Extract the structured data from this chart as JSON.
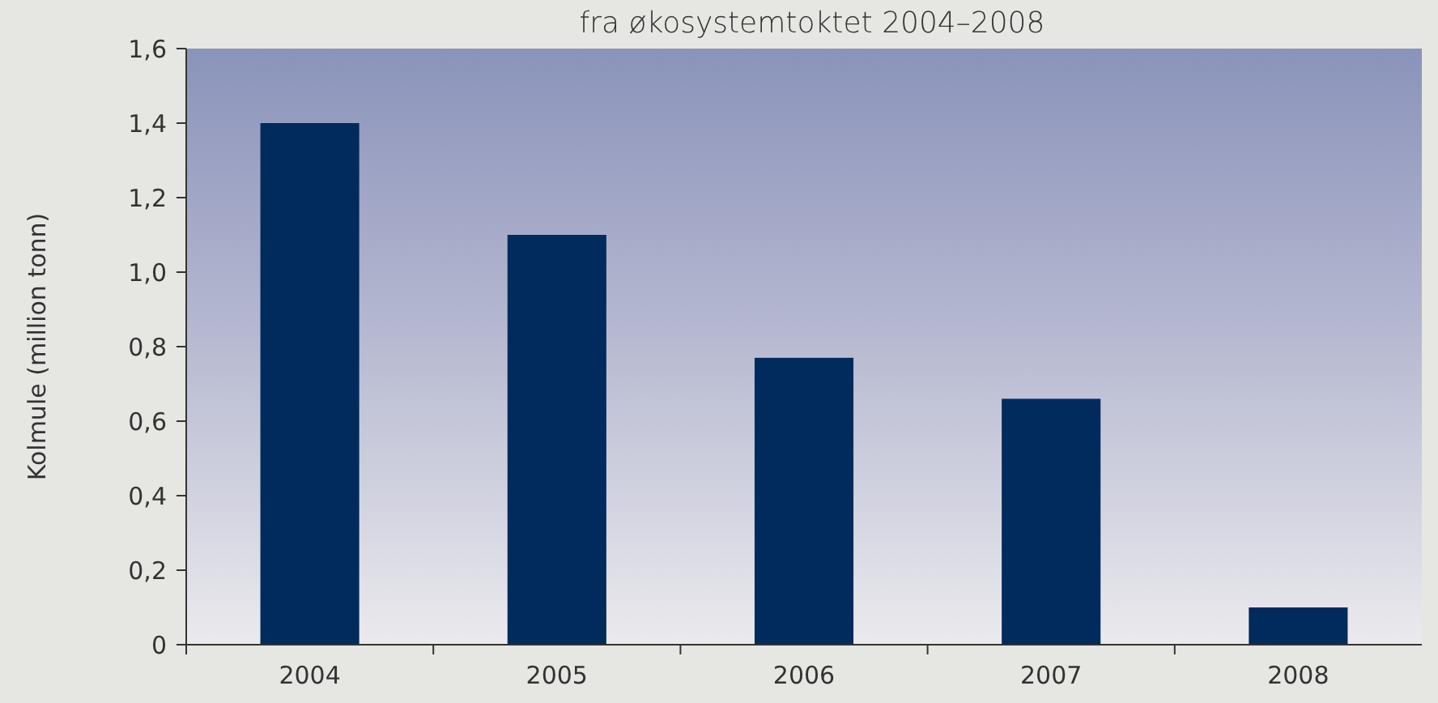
{
  "chart_data": {
    "type": "bar",
    "title": "fra økosystemtoktet 2004–2008",
    "ylabel": "Kolmule (million tonn)",
    "categories": [
      "2004",
      "2005",
      "2006",
      "2007",
      "2008"
    ],
    "values": [
      1.4,
      1.1,
      0.77,
      0.66,
      0.1
    ],
    "color": "#002b5c",
    "ylim": [
      0,
      1.6
    ],
    "yticks": [
      {
        "value": 0,
        "label": "0"
      },
      {
        "value": 0.2,
        "label": "0,2"
      },
      {
        "value": 0.4,
        "label": "0,4"
      },
      {
        "value": 0.6,
        "label": "0,6"
      },
      {
        "value": 0.8,
        "label": "0,8"
      },
      {
        "value": 1.0,
        "label": "1,0"
      },
      {
        "value": 1.2,
        "label": "1,2"
      },
      {
        "value": 1.4,
        "label": "1,4"
      },
      {
        "value": 1.6,
        "label": "1,6"
      }
    ]
  }
}
